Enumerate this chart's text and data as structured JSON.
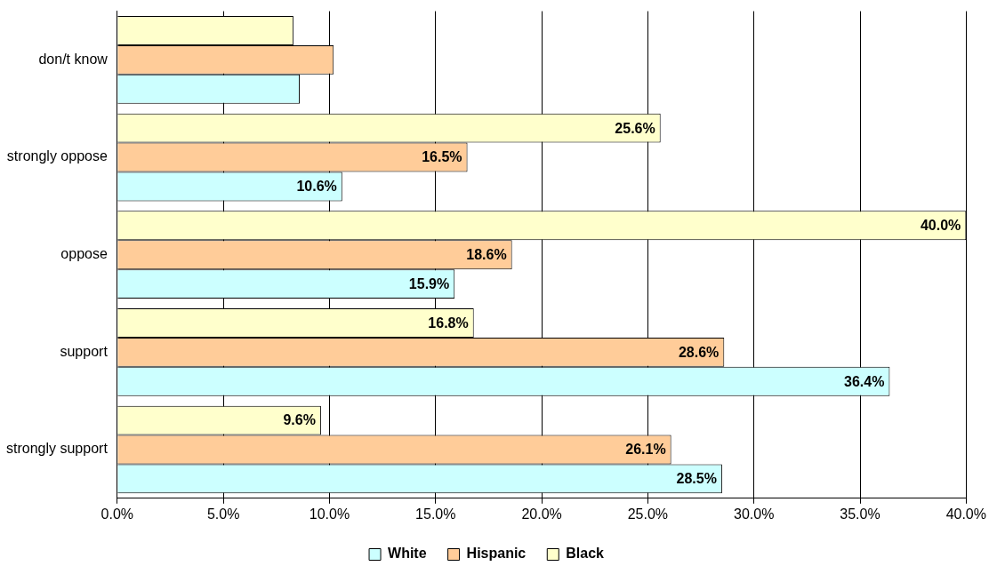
{
  "chart_data": {
    "type": "bar",
    "orientation": "horizontal",
    "categories": [
      "don/t know",
      "strongly oppose",
      "oppose",
      "support",
      "strongly support"
    ],
    "series": [
      {
        "name": "Black",
        "color": "#ffffcc",
        "values": [
          8.3,
          25.6,
          40.0,
          16.8,
          9.6
        ],
        "value_labels": [
          null,
          "25.6%",
          "40.0%",
          "16.8%",
          "9.6%"
        ]
      },
      {
        "name": "Hispanic",
        "color": "#ffcc99",
        "values": [
          10.2,
          16.5,
          18.6,
          28.6,
          26.1
        ],
        "value_labels": [
          null,
          "16.5%",
          "18.6%",
          "28.6%",
          "26.1%"
        ]
      },
      {
        "name": "White",
        "color": "#ccffff",
        "values": [
          8.6,
          10.6,
          15.9,
          36.4,
          28.5
        ],
        "value_labels": [
          null,
          "10.6%",
          "15.9%",
          "36.4%",
          "28.5%"
        ]
      }
    ],
    "xlim": [
      0,
      40
    ],
    "xticks": [
      {
        "value": 0,
        "label": "0.0%"
      },
      {
        "value": 5,
        "label": "5.0%"
      },
      {
        "value": 10,
        "label": "10.0%"
      },
      {
        "value": 15,
        "label": "15.0%"
      },
      {
        "value": 20,
        "label": "20.0%"
      },
      {
        "value": 25,
        "label": "25.0%"
      },
      {
        "value": 30,
        "label": "30.0%"
      },
      {
        "value": 35,
        "label": "35.0%"
      },
      {
        "value": 40,
        "label": "40.0%"
      }
    ],
    "grid": "x",
    "legend": "bottom"
  }
}
